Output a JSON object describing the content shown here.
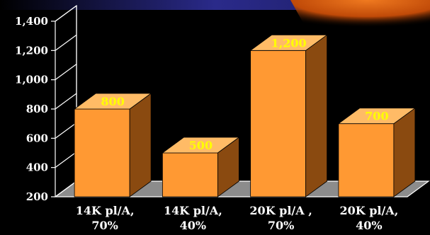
{
  "chart_data": {
    "type": "bar",
    "title": "",
    "xlabel": "",
    "ylabel": "",
    "categories": [
      [
        "14K pl/A,",
        "70%"
      ],
      [
        "14K pl/A,",
        "40%"
      ],
      [
        "20K pl/A ,",
        "70%"
      ],
      [
        "20K pl/A,",
        "40%"
      ]
    ],
    "values": [
      800,
      500,
      1200,
      700
    ],
    "value_labels": [
      "800",
      "500",
      "1,200",
      "700"
    ],
    "ylim": [
      200,
      1400
    ],
    "yticks": [
      200,
      400,
      600,
      800,
      1000,
      1200,
      1400
    ],
    "ytick_labels": [
      "200",
      "400",
      "600",
      "800",
      "1,000",
      "1,200",
      "1,400"
    ],
    "grid": false,
    "legend": false,
    "style": "3d-bar"
  },
  "colors": {
    "background": "#000000",
    "bar_front": "#FF9933",
    "bar_top": "#FFBB66",
    "bar_side": "#8A4A10",
    "floor": "#8C8C8C",
    "axis_text": "#FFFFFF",
    "value_text": "#FFFF00",
    "banner_top": "#2A2A8A",
    "accent_glow": "#E86A10"
  }
}
